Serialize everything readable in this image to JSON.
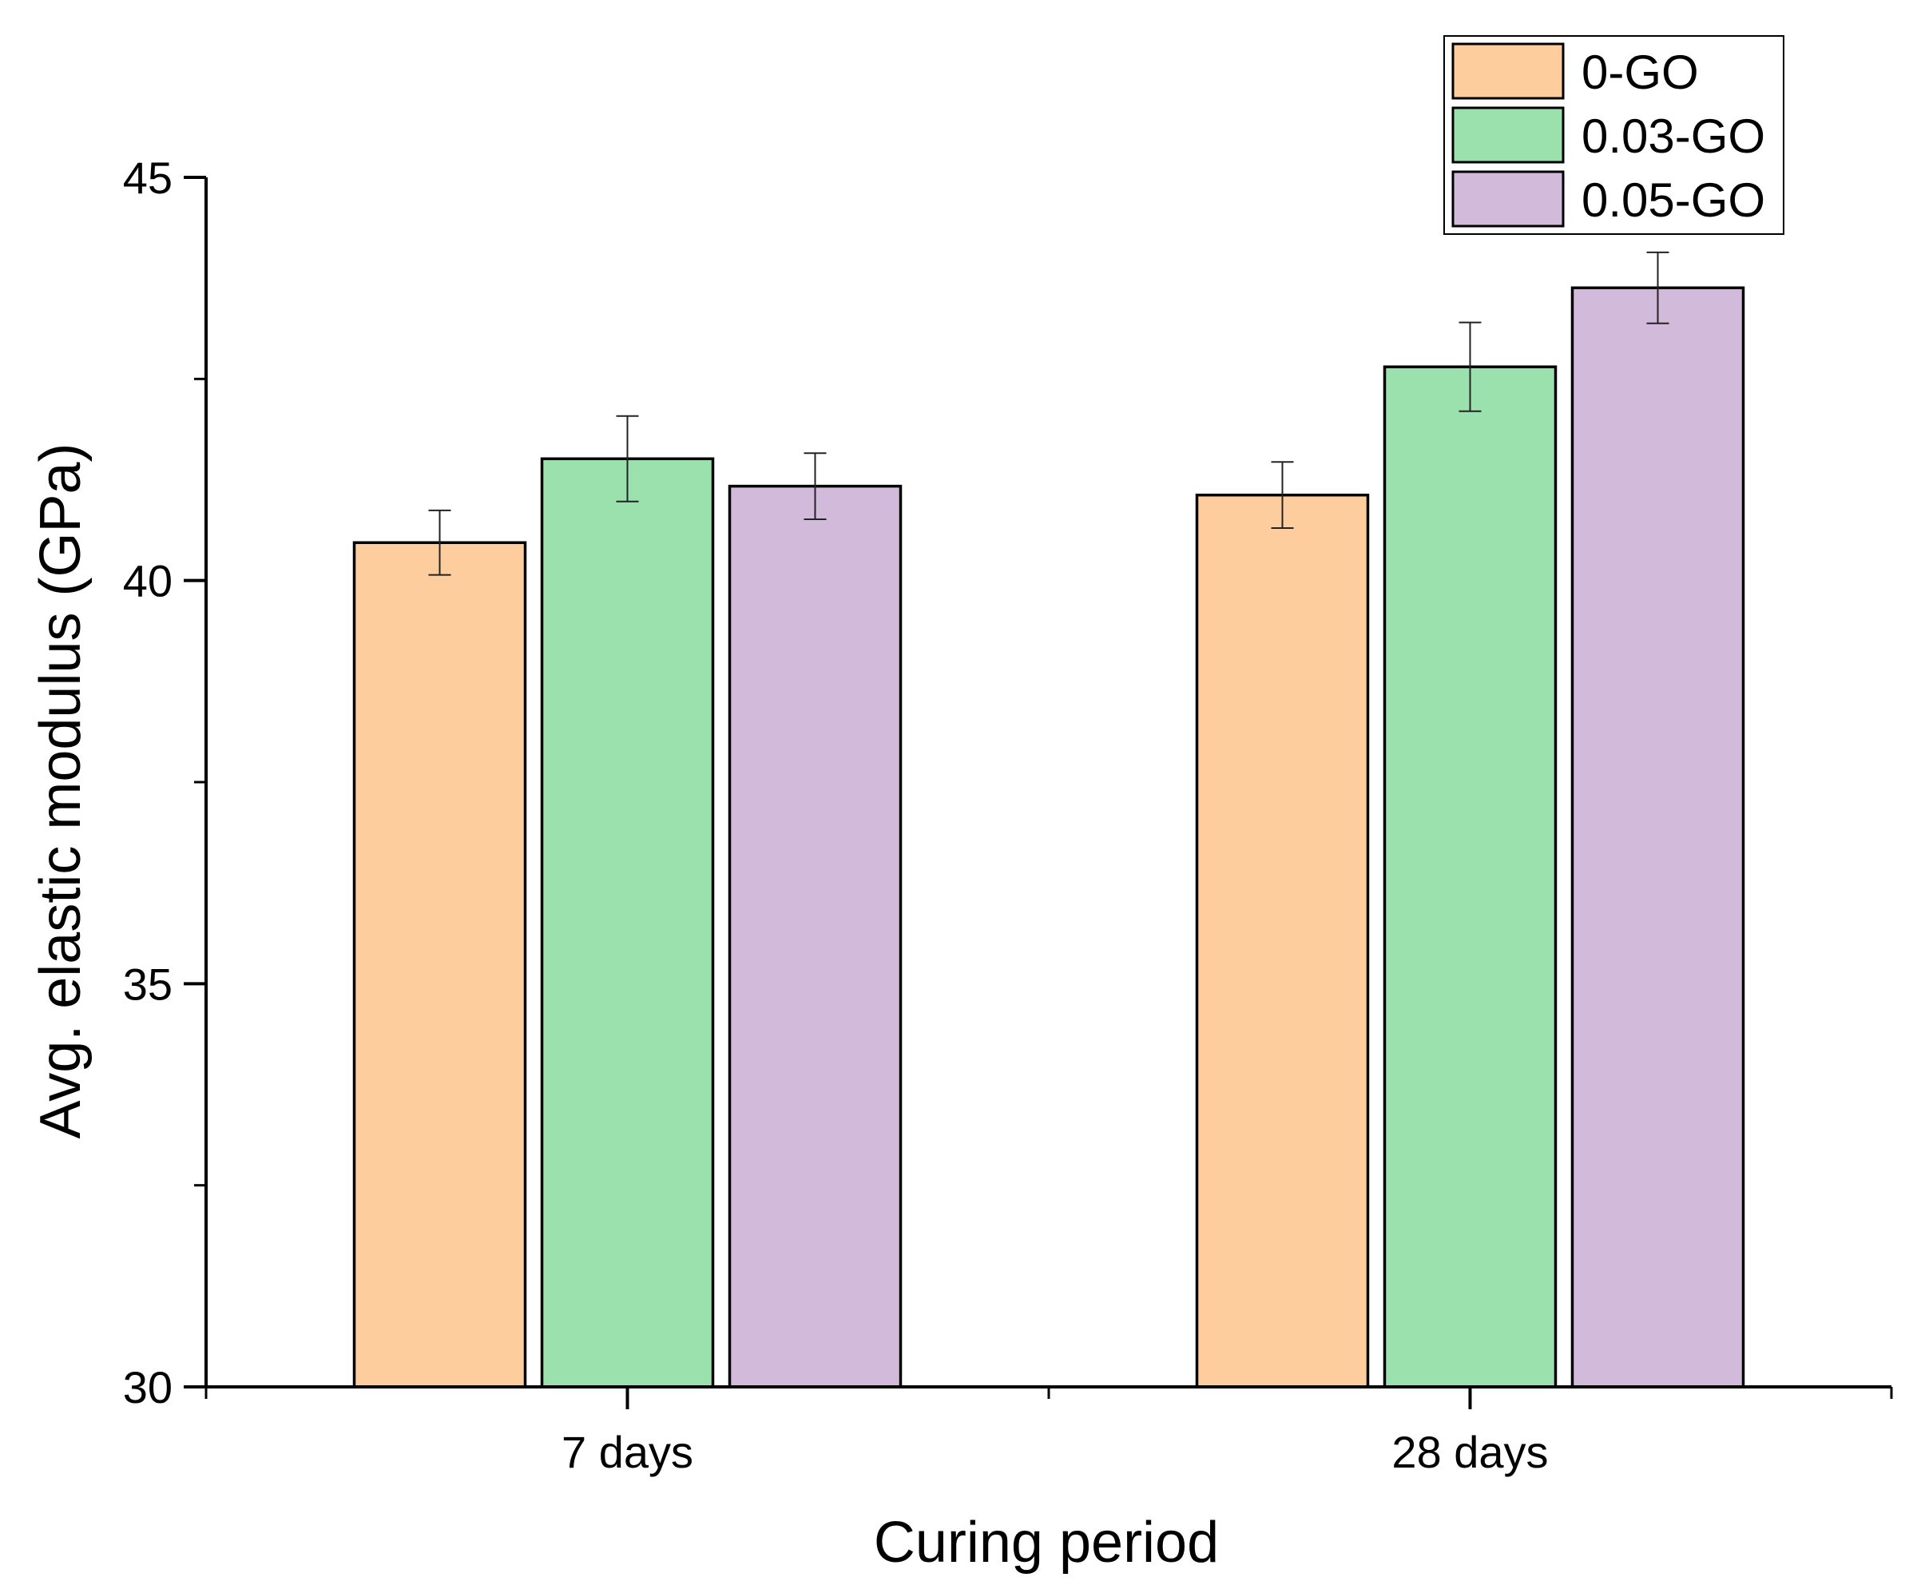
{
  "chart_data": {
    "type": "bar",
    "title": "",
    "xlabel": "Curing period",
    "ylabel": "Avg. elastic modulus (GPa)",
    "ylim": [
      30,
      45
    ],
    "yticks": [
      30,
      35,
      40,
      45
    ],
    "categories": [
      "7 days",
      "28 days"
    ],
    "series": [
      {
        "name": "0-GO",
        "color": "#FDCD9D",
        "values": [
          40.47,
          41.06
        ],
        "errors": [
          0.4,
          0.41
        ]
      },
      {
        "name": "0.03-GO",
        "color": "#9AE1AE",
        "values": [
          41.51,
          42.65
        ],
        "errors": [
          0.53,
          0.55
        ]
      },
      {
        "name": "0.05-GO",
        "color": "#D2BADB",
        "values": [
          41.17,
          43.63
        ],
        "errors": [
          0.41,
          0.44
        ]
      }
    ],
    "legend_position": "top-right",
    "grid": false
  }
}
